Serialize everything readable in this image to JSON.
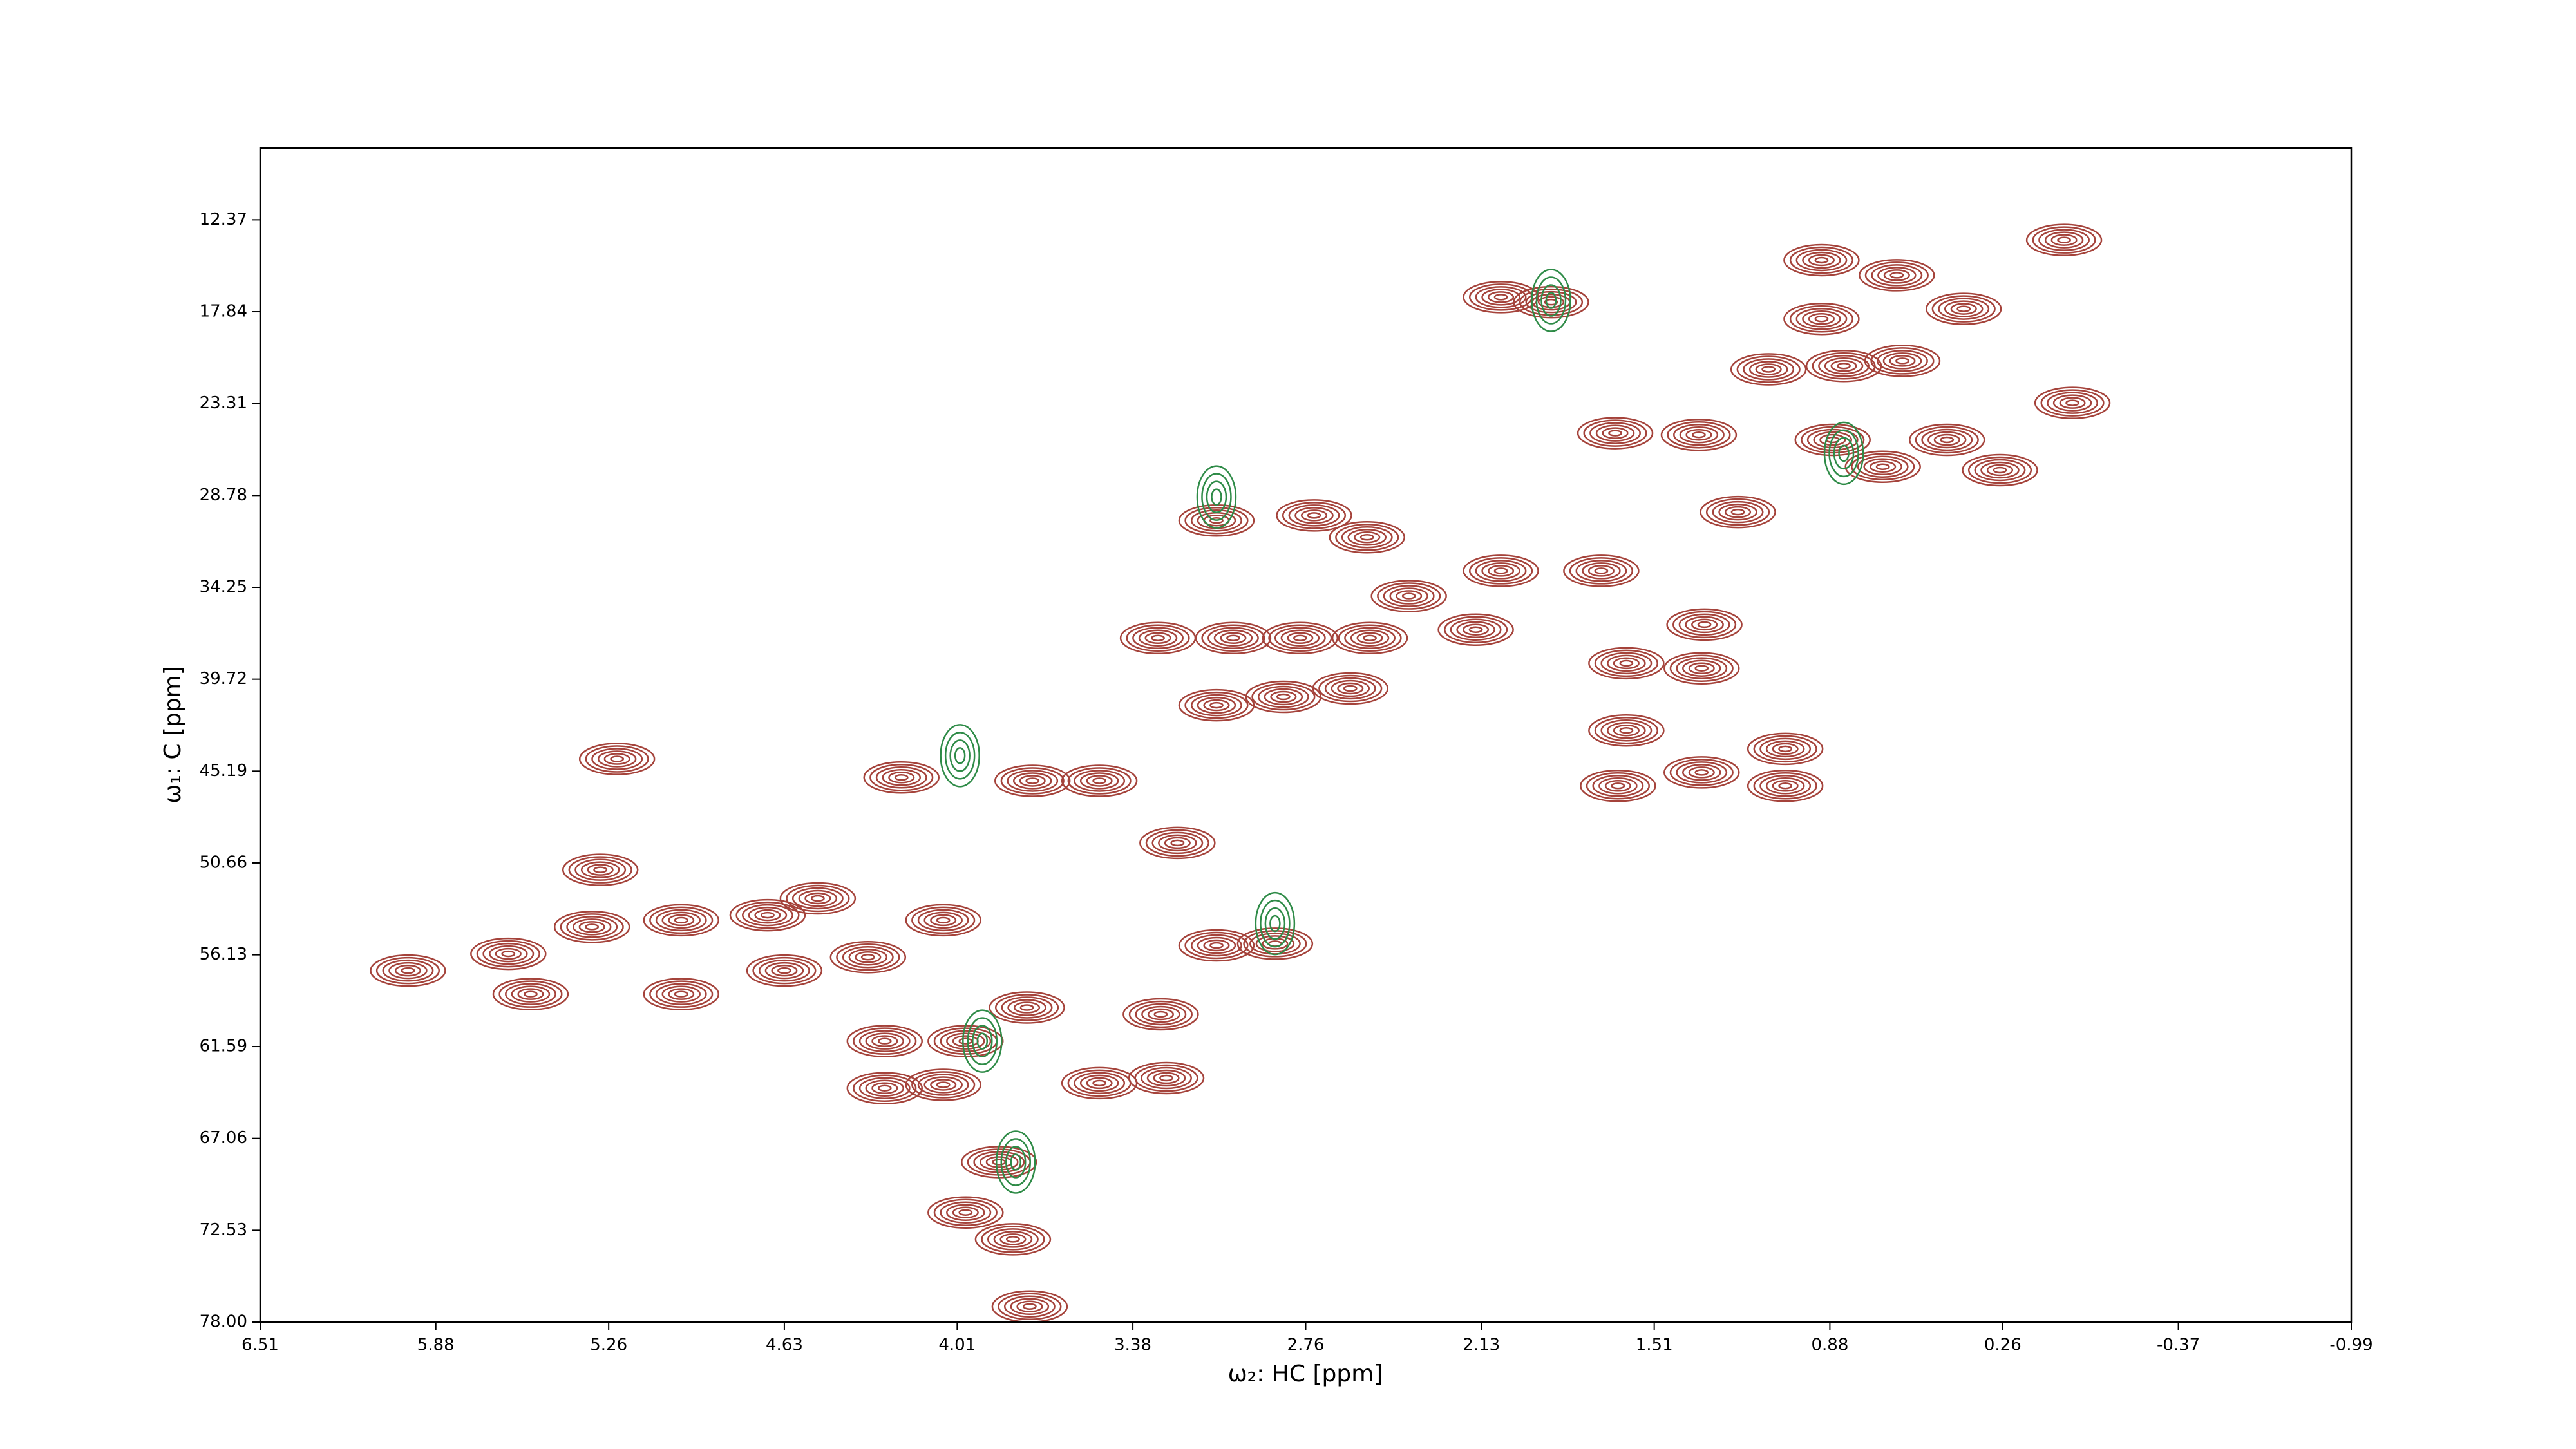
{
  "chart_data": {
    "type": "contour",
    "xlabel": "ω₂: HC [ppm]",
    "ylabel": "ω₁: C [ppm]",
    "xlim": [
      6.51,
      -0.99
    ],
    "ylim": [
      78,
      8.1
    ],
    "xticks": [
      6.51,
      5.88,
      5.26,
      4.63,
      4.01,
      3.38,
      2.76,
      2.13,
      1.51,
      0.88,
      0.26,
      -0.37,
      -0.99
    ],
    "yticks": [
      12.37,
      17.84,
      23.31,
      28.78,
      34.25,
      39.72,
      45.19,
      50.66,
      56.13,
      61.59,
      67.06,
      72.53,
      {
        "value": 78,
        "label": "78.00"
      }
    ],
    "series": [
      {
        "color": "#a5433b",
        "x": [
          0.91,
          0.64,
          0.04,
          2.06,
          1.88,
          0.4,
          0.91,
          0.83,
          1.1,
          0.62,
          0.01,
          1.65,
          1.35,
          0.87,
          0.46,
          0.27,
          0.69,
          3.08,
          2.73,
          2.54,
          1.21,
          2.06,
          1.7,
          2.39,
          3.29,
          3.02,
          2.78,
          2.53,
          2.15,
          1.33,
          3.08,
          2.84,
          2.6,
          1.61,
          1.34,
          1.61,
          1.04,
          5.23,
          4.21,
          3.74,
          3.5,
          1.34,
          1.04,
          1.64,
          3.22,
          5.29,
          5.98,
          5.62,
          5.32,
          5.0,
          4.69,
          4.51,
          5.54,
          5.0,
          4.63,
          4.33,
          4.06,
          3.08,
          2.87,
          3.76,
          3.28,
          4.27,
          3.98,
          4.27,
          4.06,
          3.5,
          3.26,
          3.86,
          3.98,
          3.81,
          3.75
        ],
        "y": [
          14.77,
          15.67,
          13.57,
          16.97,
          17.27,
          17.67,
          18.27,
          21.07,
          21.27,
          20.77,
          23.27,
          25.07,
          25.17,
          25.47,
          25.47,
          27.27,
          27.07,
          30.27,
          29.97,
          31.27,
          29.77,
          33.27,
          33.27,
          34.77,
          37.27,
          37.27,
          37.27,
          37.27,
          36.77,
          36.47,
          41.27,
          40.77,
          40.27,
          38.77,
          39.07,
          42.77,
          43.87,
          44.47,
          45.57,
          45.77,
          45.77,
          45.27,
          46.07,
          46.07,
          49.47,
          51.07,
          57.07,
          56.07,
          54.47,
          54.07,
          53.77,
          52.77,
          58.47,
          58.47,
          57.07,
          56.27,
          54.07,
          55.57,
          55.47,
          59.27,
          59.67,
          61.27,
          61.27,
          64.07,
          63.87,
          63.77,
          63.47,
          68.47,
          71.47,
          73.07,
          77.07
        ]
      },
      {
        "color": "#2e8b47",
        "x": [
          4.0,
          1.88,
          2.87,
          3.08,
          3.92,
          0.83,
          3.8
        ],
        "y": [
          44.27,
          17.17,
          54.27,
          28.87,
          61.27,
          26.27,
          68.47
        ]
      }
    ]
  }
}
